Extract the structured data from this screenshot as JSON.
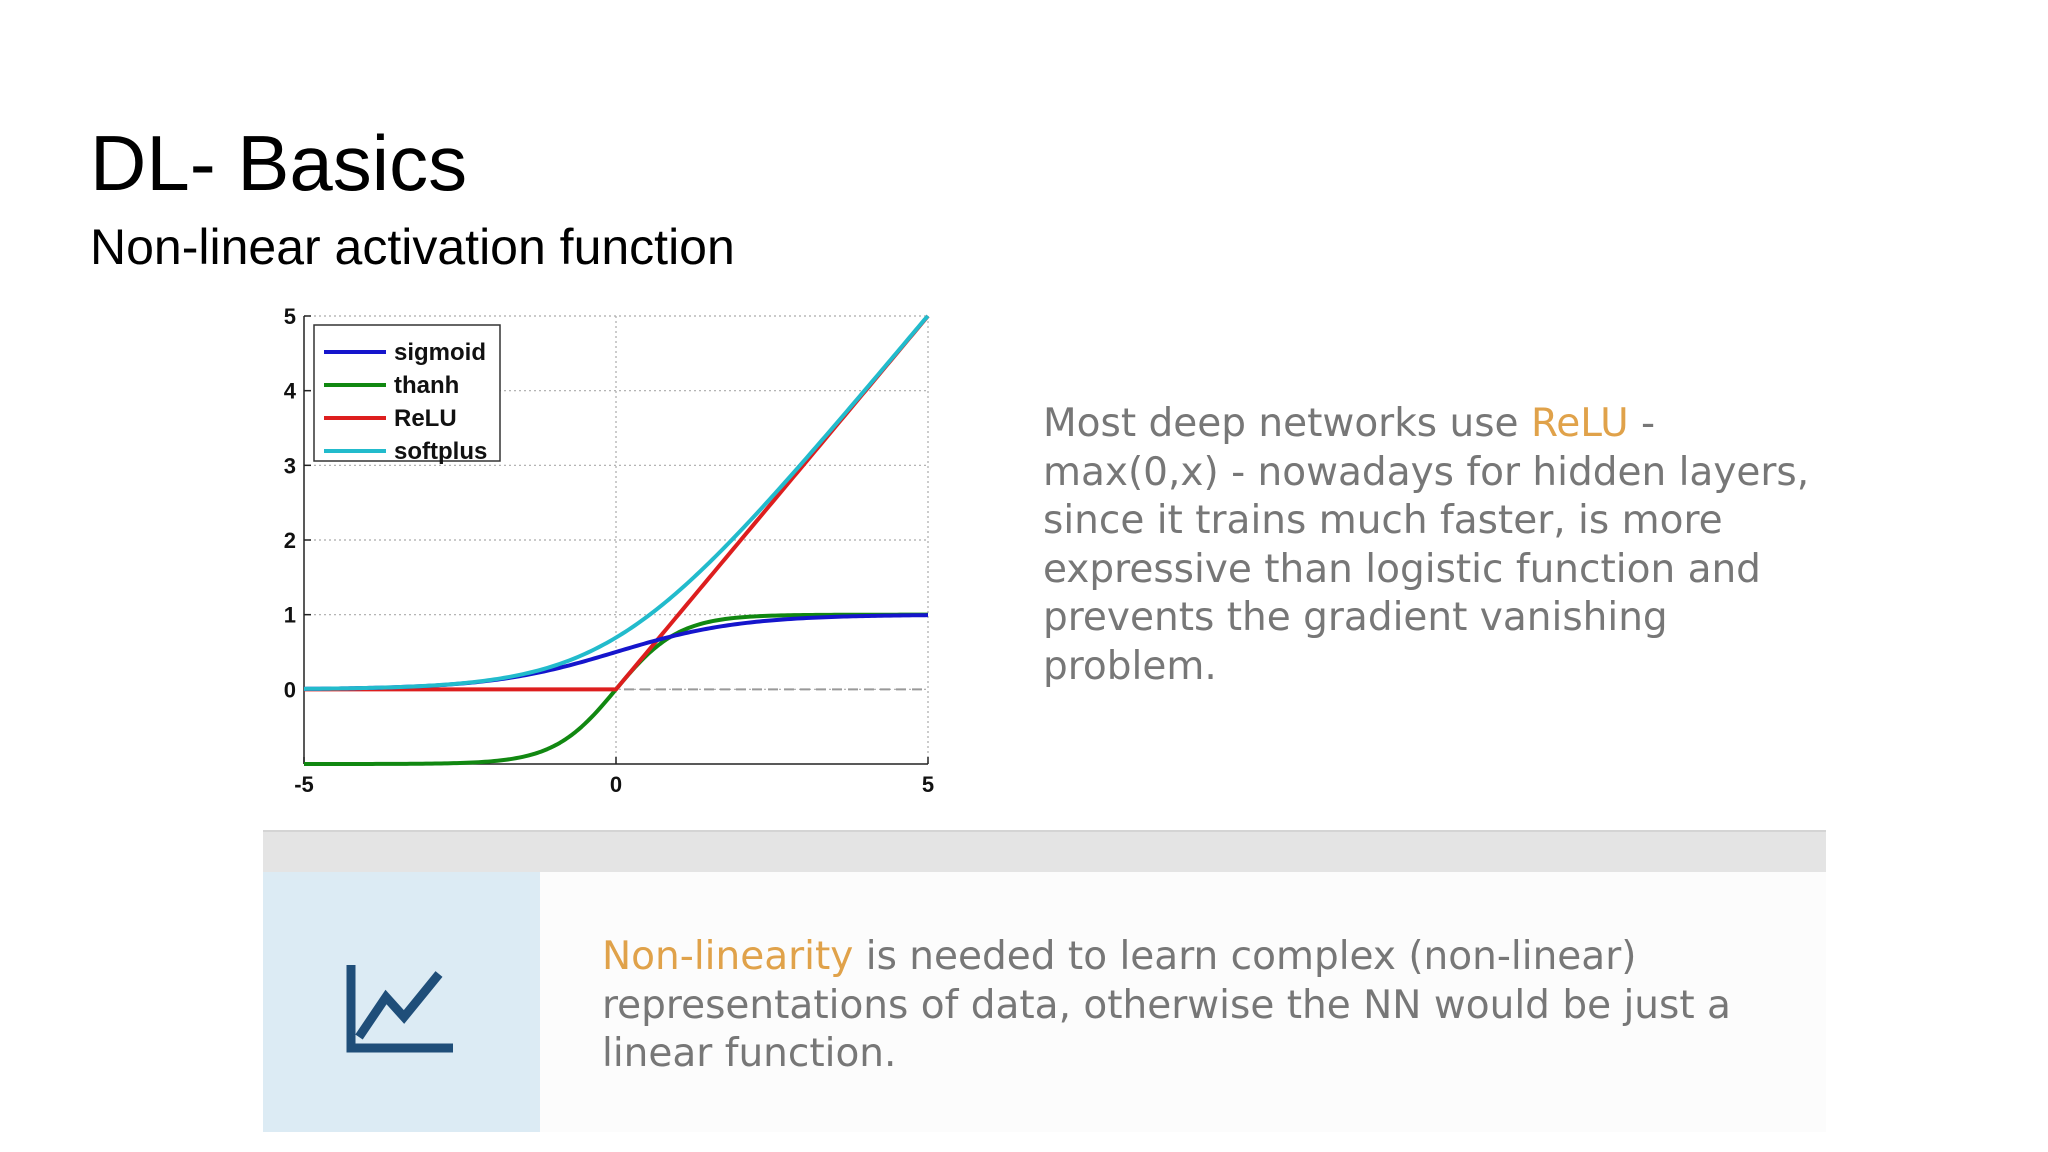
{
  "slide": {
    "title": "DL- Basics",
    "subtitle": "Non-linear activation function"
  },
  "description": {
    "pre": "Most deep networks use ",
    "highlight": "ReLU",
    "post": " - max(0,x) - nowadays for hidden layers, since it trains much faster, is more expressive than logistic function and prevents the gradient vanishing problem."
  },
  "note": {
    "highlight": "Non-linearity",
    "text": " is needed to learn complex (non-linear) representations of data, otherwise the NN would be just a linear function."
  },
  "icon": "line-chart-icon",
  "colors": {
    "highlight": "#e0a24a",
    "body_text": "#777777",
    "icon_bg": "#dcebf4",
    "icon": "#1f4e79"
  },
  "chart_data": {
    "type": "line",
    "xlim": [
      -5,
      5
    ],
    "ylim": [
      -1,
      5
    ],
    "xticks": [
      "-5",
      "0",
      "5"
    ],
    "yticks": [
      "0",
      "1",
      "2",
      "3",
      "4",
      "5"
    ],
    "grid": true,
    "legend_position": "top-left",
    "series": [
      {
        "name": "sigmoid",
        "color": "#1515cc",
        "function": "sigmoid",
        "x": [
          -5,
          -4,
          -3,
          -2,
          -1,
          0,
          1,
          2,
          3,
          4,
          5
        ],
        "y": [
          0.007,
          0.018,
          0.047,
          0.119,
          0.269,
          0.5,
          0.731,
          0.881,
          0.953,
          0.982,
          0.993
        ]
      },
      {
        "name": "thanh",
        "color": "#118811",
        "function": "tanh",
        "x": [
          -5,
          -4,
          -3,
          -2,
          -1,
          0,
          1,
          2,
          3,
          4,
          5
        ],
        "y": [
          -1.0,
          -0.999,
          -0.995,
          -0.964,
          -0.762,
          0,
          0.762,
          0.964,
          0.995,
          0.999,
          1.0
        ]
      },
      {
        "name": "ReLU",
        "color": "#dd1e1e",
        "function": "relu",
        "x": [
          -5,
          0,
          5
        ],
        "y": [
          0,
          0,
          5
        ]
      },
      {
        "name": "softplus",
        "color": "#22bbcc",
        "function": "softplus",
        "x": [
          -5,
          -4,
          -3,
          -2,
          -1,
          0,
          1,
          2,
          3,
          4,
          5
        ],
        "y": [
          0.007,
          0.018,
          0.049,
          0.127,
          0.313,
          0.693,
          1.313,
          2.127,
          3.049,
          4.018,
          5.007
        ]
      }
    ]
  }
}
